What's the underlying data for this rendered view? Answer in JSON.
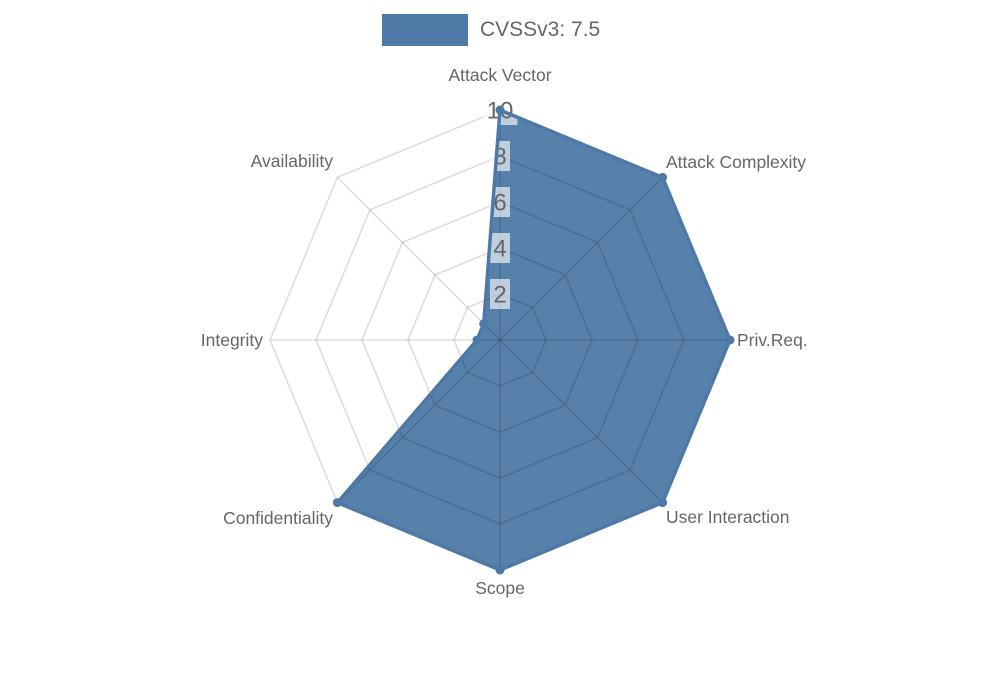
{
  "legend": {
    "label": "CVSSv3: 7.5",
    "swatch_color": "#4e79a7"
  },
  "chart_data": {
    "type": "radar",
    "title": "CVSSv3: 7.5",
    "categories": [
      "Attack Vector",
      "Attack Complexity",
      "Priv.Req.",
      "User Interaction",
      "Scope",
      "Confidentiality",
      "Integrity",
      "Availability"
    ],
    "series": [
      {
        "name": "CVSSv3: 7.5",
        "values": [
          10,
          10,
          10,
          10,
          10,
          10,
          1,
          1
        ],
        "color": "#4e79a7"
      }
    ],
    "ticks": [
      2,
      4,
      6,
      8,
      10
    ],
    "rmax": 10,
    "grid": true,
    "legend_position": "top",
    "colors": {
      "label": "#666666",
      "tick": "#666666",
      "grid": "rgba(0,0,0,0.13)",
      "tick_backdrop": "rgba(255,255,255,0.62)"
    }
  }
}
